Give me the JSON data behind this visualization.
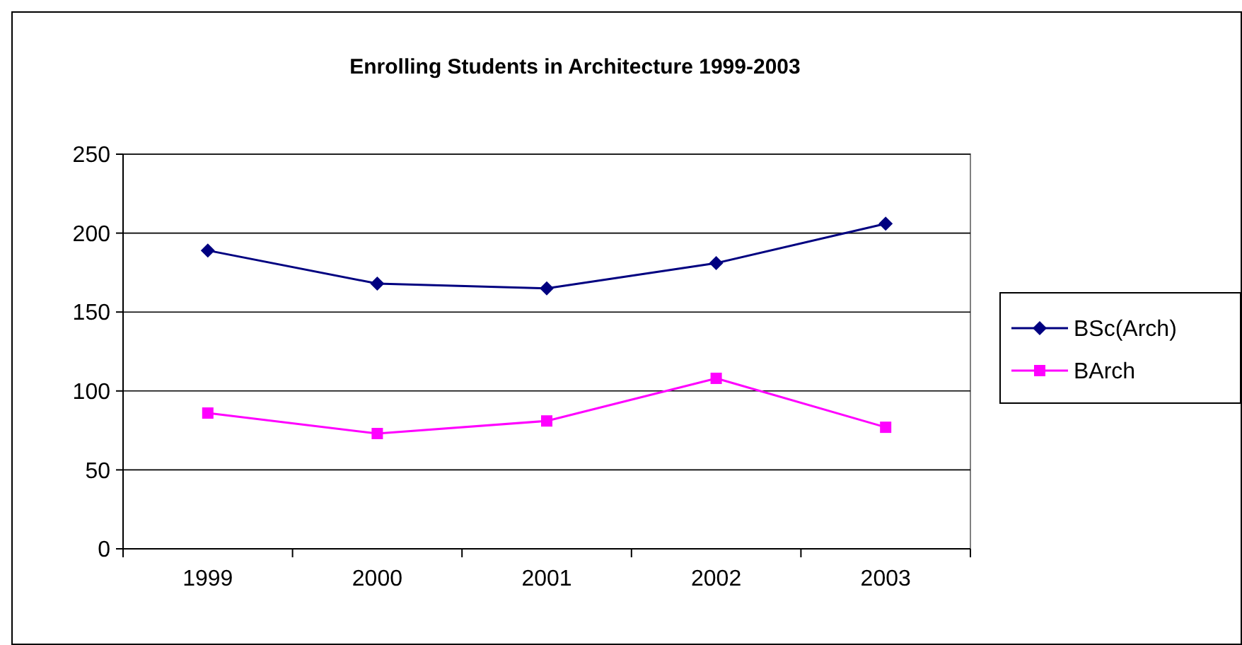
{
  "chart_data": {
    "type": "line",
    "title": "Enrolling Students in Architecture 1999-2003",
    "categories": [
      "1999",
      "2000",
      "2001",
      "2002",
      "2003"
    ],
    "series": [
      {
        "name": "BSc(Arch)",
        "color": "#000080",
        "marker": "diamond",
        "values": [
          189,
          168,
          165,
          181,
          206
        ]
      },
      {
        "name": "BArch",
        "color": "#ff00ff",
        "marker": "square",
        "values": [
          86,
          73,
          81,
          108,
          77
        ]
      }
    ],
    "ylim": [
      0,
      250
    ],
    "yticks": [
      0,
      50,
      100,
      150,
      200,
      250
    ],
    "grid": "y",
    "legend": "right"
  }
}
